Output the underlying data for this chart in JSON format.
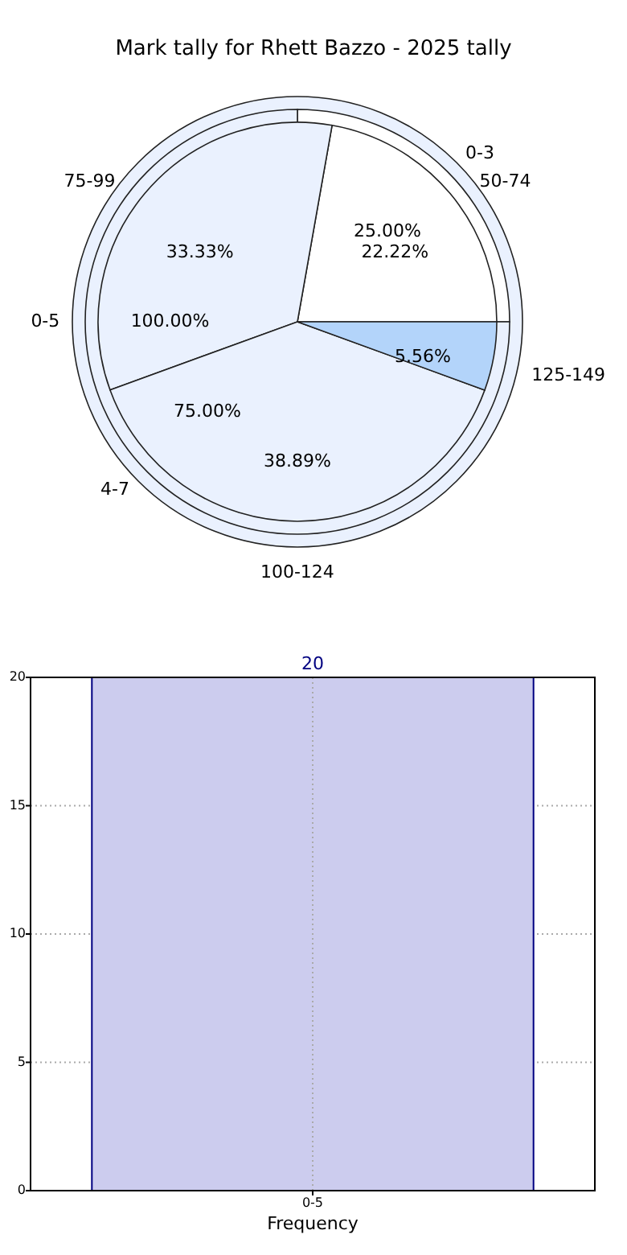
{
  "chart_data": [
    {
      "type": "pie",
      "title": "Mark tally for Rhett Bazzo - 2025 tally",
      "categories": [
        "0-5"
      ],
      "values": [
        100
      ],
      "colors": [
        "#eaf1fe"
      ],
      "value_labels": [
        "100.00%"
      ]
    },
    {
      "type": "pie",
      "categories": [
        "0-3",
        "4-7"
      ],
      "values": [
        25,
        75
      ],
      "colors": [
        "#ffffff",
        "#eaf1fe"
      ],
      "value_labels": [
        "25.00%",
        "75.00%"
      ]
    },
    {
      "type": "pie",
      "categories": [
        "50-74",
        "75-99",
        "100-124",
        "125-149"
      ],
      "values": [
        22.22,
        33.33,
        38.89,
        5.56
      ],
      "colors": [
        "#ffffff",
        "#eaf1fe",
        "#eaf1fe",
        "#b3d4fa"
      ],
      "value_labels": [
        "22.22%",
        "33.33%",
        "38.89%",
        "5.56%"
      ]
    },
    {
      "type": "bar",
      "categories": [
        "0-5"
      ],
      "values": [
        20
      ],
      "color": "#ccccee",
      "xlabel": "Frequency",
      "ylim": [
        0,
        20
      ],
      "yticks": [
        0,
        5,
        10,
        15,
        20
      ],
      "grid": true,
      "data_labels": true
    }
  ]
}
